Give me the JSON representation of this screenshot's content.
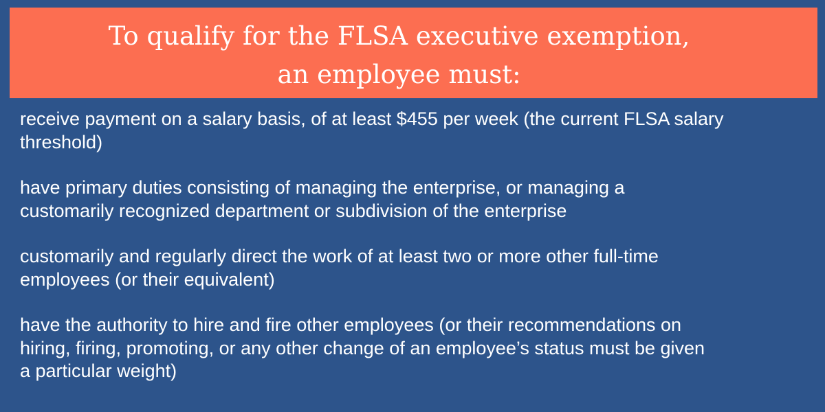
{
  "colors": {
    "background": "#2d548b",
    "banner": "#fc6e51",
    "text": "#ffffff"
  },
  "title": {
    "lines": [
      "To qualify for the FLSA executive exemption,",
      "an employee must:"
    ]
  },
  "requirements": [
    {
      "lines": [
        "receive payment on a salary basis, of at least $455 per week (the current FLSA salary",
        "threshold)"
      ]
    },
    {
      "lines": [
        "have primary duties consisting of managing the enterprise, or managing a",
        "customarily recognized department or subdivision of the enterprise"
      ]
    },
    {
      "lines": [
        "customarily and regularly direct the work of at least two or more other full-time",
        "employees (or their equivalent)"
      ]
    },
    {
      "lines": [
        "have the authority to hire and fire other employees (or their recommendations on",
        "hiring, firing, promoting, or any other change of an employee’s status must be given",
        "a particular weight)"
      ]
    }
  ]
}
